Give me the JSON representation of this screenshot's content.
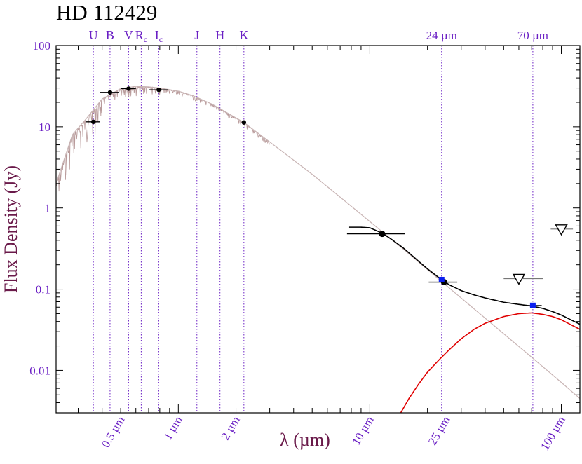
{
  "chart_data": {
    "type": "line",
    "title": "HD 112429",
    "xlabel": "λ (µm)",
    "ylabel": "Flux Density (Jy)",
    "x_scale": "log",
    "y_scale": "log",
    "xlim": [
      0.23,
      125
    ],
    "ylim": [
      0.003,
      100
    ],
    "y_ticks": [
      {
        "value": 100,
        "label": "100"
      },
      {
        "value": 10,
        "label": "10"
      },
      {
        "value": 1,
        "label": "1"
      },
      {
        "value": 0.1,
        "label": "0.1"
      },
      {
        "value": 0.01,
        "label": "0.01"
      }
    ],
    "x_ticks": [
      {
        "value": 0.5,
        "label": "0.5 µm"
      },
      {
        "value": 1,
        "label": "1 µm"
      },
      {
        "value": 2,
        "label": "2 µm"
      },
      {
        "value": 10,
        "label": "10 µm"
      },
      {
        "value": 25,
        "label": "25 µm"
      },
      {
        "value": 100,
        "label": "100 µm"
      }
    ],
    "bands": [
      {
        "name": "U",
        "sub": "",
        "wavelength": 0.36
      },
      {
        "name": "B",
        "sub": "",
        "wavelength": 0.44
      },
      {
        "name": "V",
        "sub": "",
        "wavelength": 0.55
      },
      {
        "name": "R",
        "sub": "c",
        "wavelength": 0.64
      },
      {
        "name": "I",
        "sub": "c",
        "wavelength": 0.79
      },
      {
        "name": "J",
        "sub": "",
        "wavelength": 1.25
      },
      {
        "name": "H",
        "sub": "",
        "wavelength": 1.65
      },
      {
        "name": "K",
        "sub": "",
        "wavelength": 2.2
      },
      {
        "name": "24 µm",
        "sub": "",
        "wavelength": 23.7
      },
      {
        "name": "70 µm",
        "sub": "",
        "wavelength": 71
      }
    ],
    "photometry": [
      {
        "x": 0.36,
        "y": 11.5,
        "xerr": [
          0.33,
          0.39
        ]
      },
      {
        "x": 0.44,
        "y": 26.5,
        "xerr": [
          0.39,
          0.49
        ]
      },
      {
        "x": 0.55,
        "y": 29.5,
        "xerr": [
          0.5,
          0.6
        ]
      },
      {
        "x": 0.79,
        "y": 28.5,
        "xerr": [
          0.7,
          0.88
        ]
      },
      {
        "x": 2.2,
        "y": 11.3,
        "xerr": [
          2.15,
          2.25
        ]
      },
      {
        "x": 11.6,
        "y": 0.48,
        "xerr": [
          7.6,
          15.3
        ]
      },
      {
        "x": 24.4,
        "y": 0.122,
        "xerr": [
          20.3,
          28.6
        ]
      }
    ],
    "spitzer": [
      {
        "x": 23.7,
        "y": 0.131
      },
      {
        "x": 71,
        "y": 0.063,
        "xerr": [
          63,
          79
        ]
      }
    ],
    "upper_limits": [
      {
        "x": 60,
        "y": 0.135,
        "xerr": [
          50,
          80
        ]
      },
      {
        "x": 100,
        "y": 0.55,
        "xerr": [
          88,
          115
        ]
      }
    ],
    "stellar_model": {
      "x": [
        0.23,
        0.28,
        0.33,
        0.4,
        0.5,
        0.6,
        0.7,
        0.8,
        1.0,
        1.2,
        1.5,
        2.2,
        3.0,
        5.0,
        8.0,
        10,
        15,
        24,
        40,
        70,
        100,
        125
      ],
      "y": [
        2.0,
        8.0,
        12.5,
        22.0,
        29.5,
        31.5,
        31.0,
        30.0,
        27.5,
        24.0,
        19.0,
        11.3,
        6.5,
        2.6,
        1.05,
        0.68,
        0.31,
        0.121,
        0.044,
        0.0145,
        0.0071,
        0.0045
      ]
    },
    "disk_model": {
      "x": [
        14.5,
        16,
        18,
        20,
        23,
        26,
        30,
        35,
        40,
        50,
        60,
        70,
        80,
        90,
        100,
        125
      ],
      "y": [
        0.003,
        0.0045,
        0.0068,
        0.0095,
        0.0135,
        0.018,
        0.0245,
        0.032,
        0.038,
        0.046,
        0.05,
        0.051,
        0.049,
        0.046,
        0.042,
        0.032
      ]
    },
    "total_model": {
      "x": [
        7.8,
        9,
        10,
        11.6,
        13,
        15,
        18,
        20,
        23,
        26,
        30,
        35,
        40,
        50,
        60,
        70,
        80,
        90,
        100,
        125
      ],
      "y": [
        0.58,
        0.58,
        0.57,
        0.49,
        0.41,
        0.32,
        0.22,
        0.178,
        0.138,
        0.113,
        0.096,
        0.085,
        0.078,
        0.069,
        0.065,
        0.062,
        0.058,
        0.053,
        0.048,
        0.037
      ]
    }
  }
}
